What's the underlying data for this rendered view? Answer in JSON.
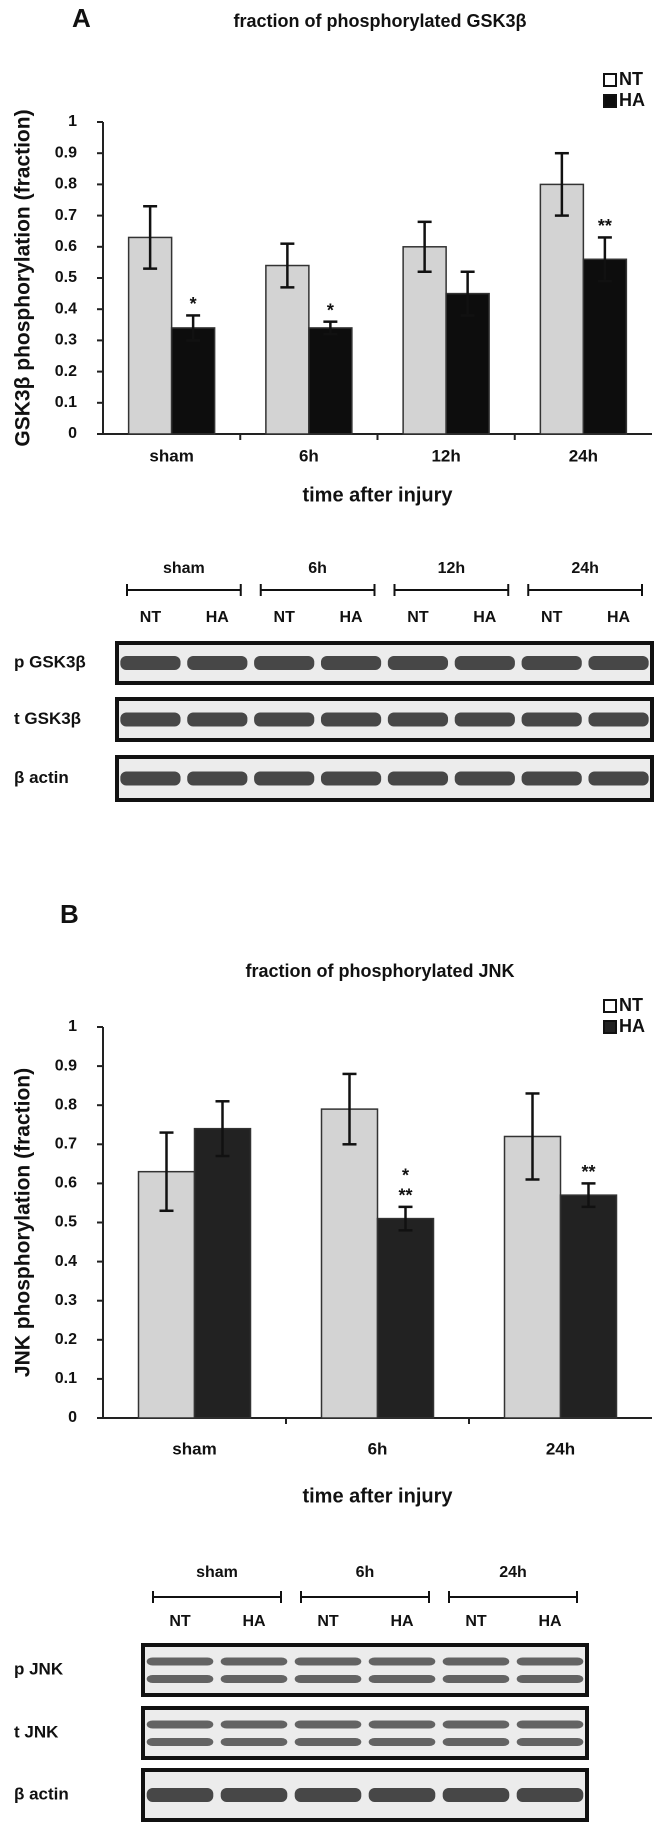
{
  "chart_data": [
    {
      "type": "bar",
      "panel": "A",
      "title": "fraction of phosphorylated GSK3β",
      "y_label": "GSK3β phosphorylation (fraction)",
      "x_label": "time after injury",
      "categories": [
        "sham",
        "6h",
        "12h",
        "24h"
      ],
      "series": [
        {
          "name": "NT",
          "color": "#d3d3d3",
          "values": [
            0.63,
            0.54,
            0.6,
            0.8
          ],
          "errors": [
            0.1,
            0.07,
            0.08,
            0.1
          ]
        },
        {
          "name": "HA",
          "color": "#0d0d0d",
          "values": [
            0.34,
            0.34,
            0.45,
            0.56
          ],
          "errors": [
            0.04,
            0.02,
            0.07,
            0.07
          ]
        }
      ],
      "annotations": [
        [
          "*"
        ],
        [
          "*"
        ],
        null,
        [
          "**"
        ]
      ],
      "ylim": [
        0,
        1
      ],
      "yticks": [
        0,
        0.1,
        0.2,
        0.3,
        0.4,
        0.5,
        0.6,
        0.7,
        0.8,
        0.9,
        1
      ],
      "legend": "upper right"
    },
    {
      "type": "bar",
      "panel": "B",
      "title": "fraction of phosphorylated JNK",
      "y_label": "JNK phosphorylation (fraction)",
      "x_label": "time after injury",
      "categories": [
        "sham",
        "6h",
        "24h"
      ],
      "series": [
        {
          "name": "NT",
          "color": "#d3d3d3",
          "values": [
            0.63,
            0.79,
            0.72
          ],
          "errors": [
            0.1,
            0.09,
            0.11
          ]
        },
        {
          "name": "HA",
          "color": "#222222",
          "values": [
            0.74,
            0.51,
            0.57
          ],
          "errors": [
            0.07,
            0.03,
            0.03
          ]
        }
      ],
      "annotations": [
        null,
        [
          "*",
          "**"
        ],
        [
          "**"
        ]
      ],
      "ylim": [
        0,
        1
      ],
      "yticks": [
        0,
        0.1,
        0.2,
        0.3,
        0.4,
        0.5,
        0.6,
        0.7,
        0.8,
        0.9,
        1
      ],
      "legend": "upper right"
    }
  ],
  "blots": [
    {
      "groups": [
        "sham",
        "6h",
        "12h",
        "24h"
      ],
      "lanes": [
        "NT",
        "HA",
        "NT",
        "HA",
        "NT",
        "HA",
        "NT",
        "HA"
      ],
      "rows": [
        "p GSK3β",
        "t GSK3β",
        "β actin"
      ]
    },
    {
      "groups": [
        "sham",
        "6h",
        "24h"
      ],
      "lanes": [
        "NT",
        "HA",
        "NT",
        "HA",
        "NT",
        "HA"
      ],
      "rows": [
        "p JNK",
        "t JNK",
        "β actin"
      ]
    }
  ]
}
